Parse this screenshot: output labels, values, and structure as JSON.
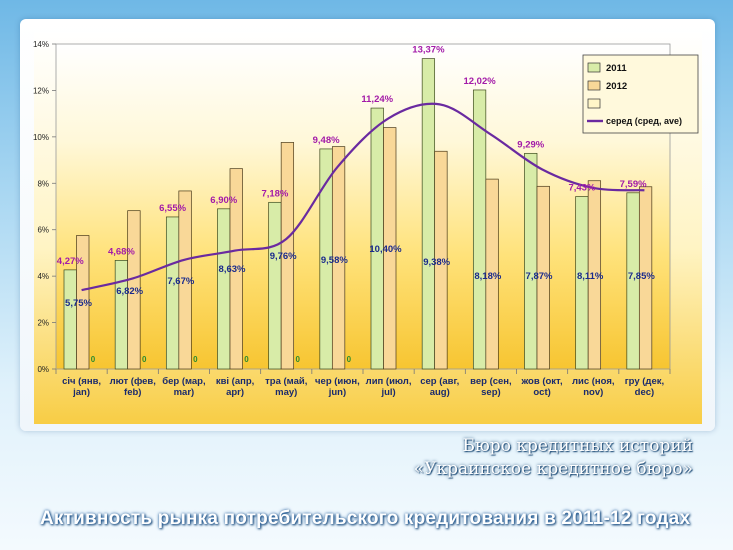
{
  "chart_data": {
    "type": "bar",
    "y_axis": {
      "ylim": [
        0,
        14
      ],
      "tick_labels": [
        "0%",
        "2%",
        "4%",
        "6%",
        "8%",
        "10%",
        "12%",
        "14%"
      ],
      "tick_values": [
        0,
        2,
        4,
        6,
        8,
        10,
        12,
        14
      ]
    },
    "categories": [
      [
        "січ (янв,",
        "jan)"
      ],
      [
        "лют (фев,",
        "feb)"
      ],
      [
        "бер (мар,",
        "mar)"
      ],
      [
        "кві (апр,",
        "apr)"
      ],
      [
        "тра (май,",
        "may)"
      ],
      [
        "чер (июн,",
        "jun)"
      ],
      [
        "лип (июл,",
        "jul)"
      ],
      [
        "сер (авг,",
        "aug)"
      ],
      [
        "вер (сен,",
        "sep)"
      ],
      [
        "жов (окт,",
        "oct)"
      ],
      [
        "лис (ноя,",
        "nov)"
      ],
      [
        "гру (дек,",
        "dec)"
      ]
    ],
    "series": [
      {
        "name": "2011",
        "type": "bar",
        "color": "#d8eca8",
        "values": [
          4.27,
          4.68,
          6.55,
          6.9,
          7.18,
          9.48,
          11.24,
          13.37,
          12.02,
          9.29,
          7.43,
          7.59
        ],
        "labels": [
          "4,27%",
          "4,68%",
          "6,55%",
          "6,90%",
          "7,18%",
          "9,48%",
          "11,24%",
          "13,37%",
          "12,02%",
          "9,29%",
          "7,43%",
          "7,59%"
        ],
        "label_color": "#a31aa8"
      },
      {
        "name": "2012",
        "type": "bar",
        "color": "#f9d898",
        "values": [
          5.75,
          6.82,
          7.67,
          8.63,
          9.76,
          9.58,
          10.4,
          9.38,
          8.18,
          7.87,
          8.11,
          7.85
        ],
        "labels": [
          "5,75%",
          "6,82%",
          "7,67%",
          "8,63%",
          "9,76%",
          "9,58%",
          "10,40%",
          "9,38%",
          "8,18%",
          "7,87%",
          "8,11%",
          "7,85%"
        ],
        "label_color": "#1a2a8c"
      },
      {
        "name": "",
        "type": "bar",
        "color": "#fff6c8",
        "values": [
          0,
          0,
          0,
          0,
          0,
          0,
          null,
          null,
          null,
          null,
          null,
          null
        ],
        "labels": [
          "0",
          "0",
          "0",
          "0",
          "0",
          "0",
          "",
          "",
          "",
          "",
          "",
          ""
        ],
        "label_color": "#2e8b2e"
      },
      {
        "name": "серед (сред, ave)",
        "type": "line",
        "color": "#6a2aa0",
        "values": [
          3.4,
          3.9,
          4.7,
          5.1,
          5.6,
          8.7,
          10.8,
          11.4,
          10.1,
          8.6,
          7.8,
          7.7
        ]
      }
    ]
  },
  "captions": {
    "line1": "Бюро кредитных историй",
    "line2": "«Украинское кредитное бюро»",
    "title": "Активность рынка потребительского кредитования в 2011-12 годах"
  }
}
